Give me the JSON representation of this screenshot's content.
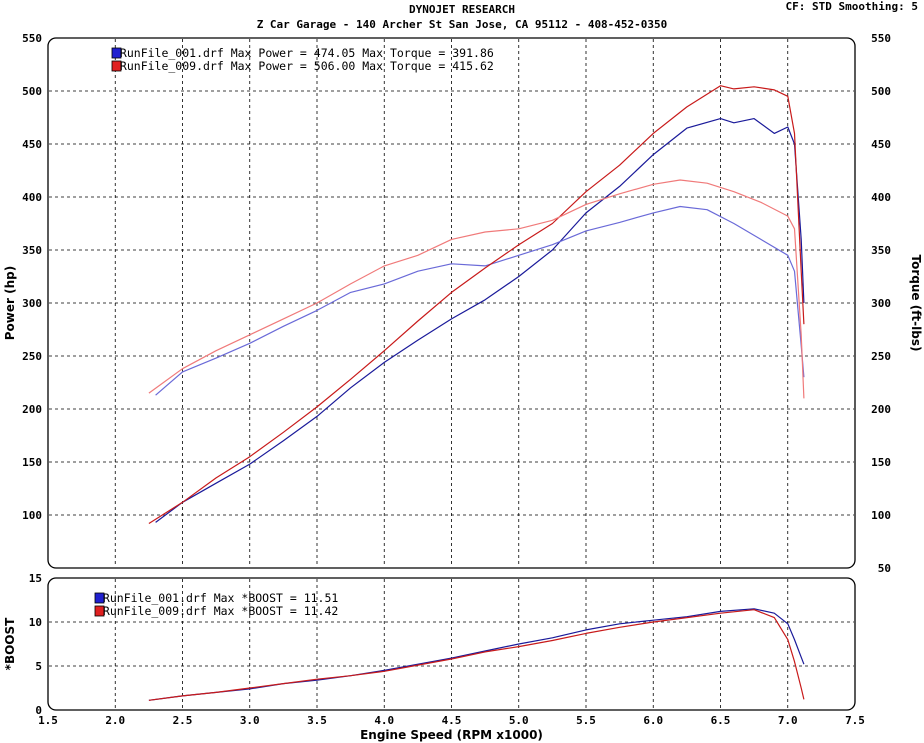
{
  "header": {
    "title": "DYNOJET RESEARCH",
    "subtitle": "Z Car Garage - 140 Archer St San Jose, CA 95112 - 408-452-0350",
    "settings": "CF: STD  Smoothing: 5"
  },
  "chart_data": [
    {
      "type": "line",
      "name": "power-torque",
      "xlim": [
        1.5,
        7.5
      ],
      "ylim": [
        50,
        550
      ],
      "grid": true,
      "ylabel": "Power (hp)",
      "y2label": "Torque (ft-lbs)",
      "yticks": [
        "100",
        "150",
        "200",
        "250",
        "300",
        "350",
        "400",
        "450",
        "500",
        "550"
      ],
      "legend_position": "top-left",
      "legend": [
        {
          "text": "RunFile_001.drf Max Power = 474.05    Max Torque = 391.86",
          "color": "#2020d0"
        },
        {
          "text": "RunFile_009.drf Max Power = 506.00    Max Torque = 415.62",
          "color": "#e02020"
        }
      ],
      "series": [
        {
          "run": "RunFile_001.drf",
          "quantity": "power",
          "color": "#1a1a9a",
          "points": [
            [
              2.3,
              93
            ],
            [
              2.5,
              112
            ],
            [
              2.75,
              130
            ],
            [
              3.0,
              148
            ],
            [
              3.25,
              170
            ],
            [
              3.5,
              193
            ],
            [
              3.75,
              220
            ],
            [
              4.0,
              244
            ],
            [
              4.25,
              265
            ],
            [
              4.5,
              285
            ],
            [
              4.75,
              303
            ],
            [
              5.0,
              325
            ],
            [
              5.25,
              350
            ],
            [
              5.5,
              385
            ],
            [
              5.75,
              410
            ],
            [
              6.0,
              440
            ],
            [
              6.25,
              465
            ],
            [
              6.5,
              474
            ],
            [
              6.6,
              470
            ],
            [
              6.75,
              474
            ],
            [
              6.9,
              460
            ],
            [
              7.0,
              466
            ],
            [
              7.05,
              450
            ],
            [
              7.1,
              360
            ],
            [
              7.12,
              300
            ]
          ]
        },
        {
          "run": "RunFile_001.drf",
          "quantity": "torque",
          "color": "#6a6ad8",
          "points": [
            [
              2.3,
              213
            ],
            [
              2.5,
              235
            ],
            [
              2.75,
              248
            ],
            [
              3.0,
              262
            ],
            [
              3.25,
              278
            ],
            [
              3.5,
              293
            ],
            [
              3.75,
              310
            ],
            [
              4.0,
              318
            ],
            [
              4.25,
              330
            ],
            [
              4.5,
              337
            ],
            [
              4.75,
              335
            ],
            [
              5.0,
              345
            ],
            [
              5.25,
              355
            ],
            [
              5.5,
              368
            ],
            [
              5.75,
              376
            ],
            [
              6.0,
              385
            ],
            [
              6.2,
              391
            ],
            [
              6.4,
              388
            ],
            [
              6.6,
              375
            ],
            [
              6.8,
              360
            ],
            [
              7.0,
              345
            ],
            [
              7.05,
              330
            ],
            [
              7.1,
              260
            ],
            [
              7.12,
              230
            ]
          ]
        },
        {
          "run": "RunFile_009.drf",
          "quantity": "power",
          "color": "#c81a1a",
          "points": [
            [
              2.25,
              92
            ],
            [
              2.5,
              112
            ],
            [
              2.75,
              135
            ],
            [
              3.0,
              155
            ],
            [
              3.25,
              178
            ],
            [
              3.5,
              202
            ],
            [
              3.75,
              228
            ],
            [
              4.0,
              255
            ],
            [
              4.25,
              283
            ],
            [
              4.5,
              310
            ],
            [
              4.75,
              333
            ],
            [
              5.0,
              355
            ],
            [
              5.25,
              375
            ],
            [
              5.5,
              405
            ],
            [
              5.75,
              430
            ],
            [
              6.0,
              460
            ],
            [
              6.25,
              485
            ],
            [
              6.5,
              505
            ],
            [
              6.6,
              502
            ],
            [
              6.75,
              504
            ],
            [
              6.9,
              501
            ],
            [
              7.0,
              495
            ],
            [
              7.05,
              460
            ],
            [
              7.1,
              330
            ],
            [
              7.12,
              280
            ]
          ]
        },
        {
          "run": "RunFile_009.drf",
          "quantity": "torque",
          "color": "#f07a7a",
          "points": [
            [
              2.25,
              215
            ],
            [
              2.5,
              238
            ],
            [
              2.75,
              255
            ],
            [
              3.0,
              270
            ],
            [
              3.25,
              285
            ],
            [
              3.5,
              300
            ],
            [
              3.75,
              318
            ],
            [
              4.0,
              335
            ],
            [
              4.25,
              345
            ],
            [
              4.5,
              360
            ],
            [
              4.75,
              367
            ],
            [
              5.0,
              370
            ],
            [
              5.25,
              378
            ],
            [
              5.5,
              393
            ],
            [
              5.75,
              403
            ],
            [
              6.0,
              412
            ],
            [
              6.2,
              416
            ],
            [
              6.4,
              413
            ],
            [
              6.6,
              405
            ],
            [
              6.8,
              395
            ],
            [
              7.0,
              382
            ],
            [
              7.05,
              370
            ],
            [
              7.1,
              270
            ],
            [
              7.12,
              210
            ]
          ]
        }
      ]
    },
    {
      "type": "line",
      "name": "boost",
      "xlim": [
        1.5,
        7.5
      ],
      "ylim": [
        0,
        15
      ],
      "grid": true,
      "xlabel": "Engine Speed (RPM x1000)",
      "ylabel": "*BOOST",
      "xticks": [
        "1.5",
        "2.0",
        "2.5",
        "3.0",
        "3.5",
        "4.0",
        "4.5",
        "5.0",
        "5.5",
        "6.0",
        "6.5",
        "7.0",
        "7.5"
      ],
      "yticks": [
        "0",
        "5",
        "10",
        "15"
      ],
      "legend_position": "top-left",
      "legend": [
        {
          "text": "RunFile_001.drf Max *BOOST = 11.51",
          "color": "#2020d0"
        },
        {
          "text": "RunFile_009.drf Max *BOOST = 11.42",
          "color": "#e02020"
        }
      ],
      "series": [
        {
          "run": "RunFile_001.drf",
          "quantity": "boost",
          "color": "#1a1a9a",
          "points": [
            [
              2.25,
              1.1
            ],
            [
              2.5,
              1.6
            ],
            [
              2.75,
              2.0
            ],
            [
              3.0,
              2.4
            ],
            [
              3.25,
              3.0
            ],
            [
              3.5,
              3.4
            ],
            [
              3.75,
              3.9
            ],
            [
              4.0,
              4.5
            ],
            [
              4.25,
              5.2
            ],
            [
              4.5,
              5.9
            ],
            [
              4.75,
              6.7
            ],
            [
              5.0,
              7.5
            ],
            [
              5.25,
              8.2
            ],
            [
              5.5,
              9.1
            ],
            [
              5.75,
              9.8
            ],
            [
              6.0,
              10.2
            ],
            [
              6.25,
              10.6
            ],
            [
              6.5,
              11.2
            ],
            [
              6.75,
              11.5
            ],
            [
              6.9,
              11.0
            ],
            [
              7.0,
              9.8
            ],
            [
              7.05,
              8.0
            ],
            [
              7.1,
              6.0
            ],
            [
              7.12,
              5.2
            ]
          ]
        },
        {
          "run": "RunFile_009.drf",
          "quantity": "boost",
          "color": "#c81a1a",
          "points": [
            [
              2.25,
              1.1
            ],
            [
              2.5,
              1.6
            ],
            [
              2.75,
              2.0
            ],
            [
              3.0,
              2.5
            ],
            [
              3.25,
              3.0
            ],
            [
              3.5,
              3.5
            ],
            [
              3.75,
              3.9
            ],
            [
              4.0,
              4.4
            ],
            [
              4.25,
              5.1
            ],
            [
              4.5,
              5.8
            ],
            [
              4.75,
              6.6
            ],
            [
              5.0,
              7.2
            ],
            [
              5.25,
              7.9
            ],
            [
              5.5,
              8.7
            ],
            [
              5.75,
              9.4
            ],
            [
              6.0,
              10.0
            ],
            [
              6.25,
              10.5
            ],
            [
              6.5,
              11.0
            ],
            [
              6.75,
              11.4
            ],
            [
              6.9,
              10.5
            ],
            [
              7.0,
              8.0
            ],
            [
              7.05,
              5.5
            ],
            [
              7.1,
              2.5
            ],
            [
              7.12,
              1.2
            ]
          ]
        }
      ]
    }
  ]
}
